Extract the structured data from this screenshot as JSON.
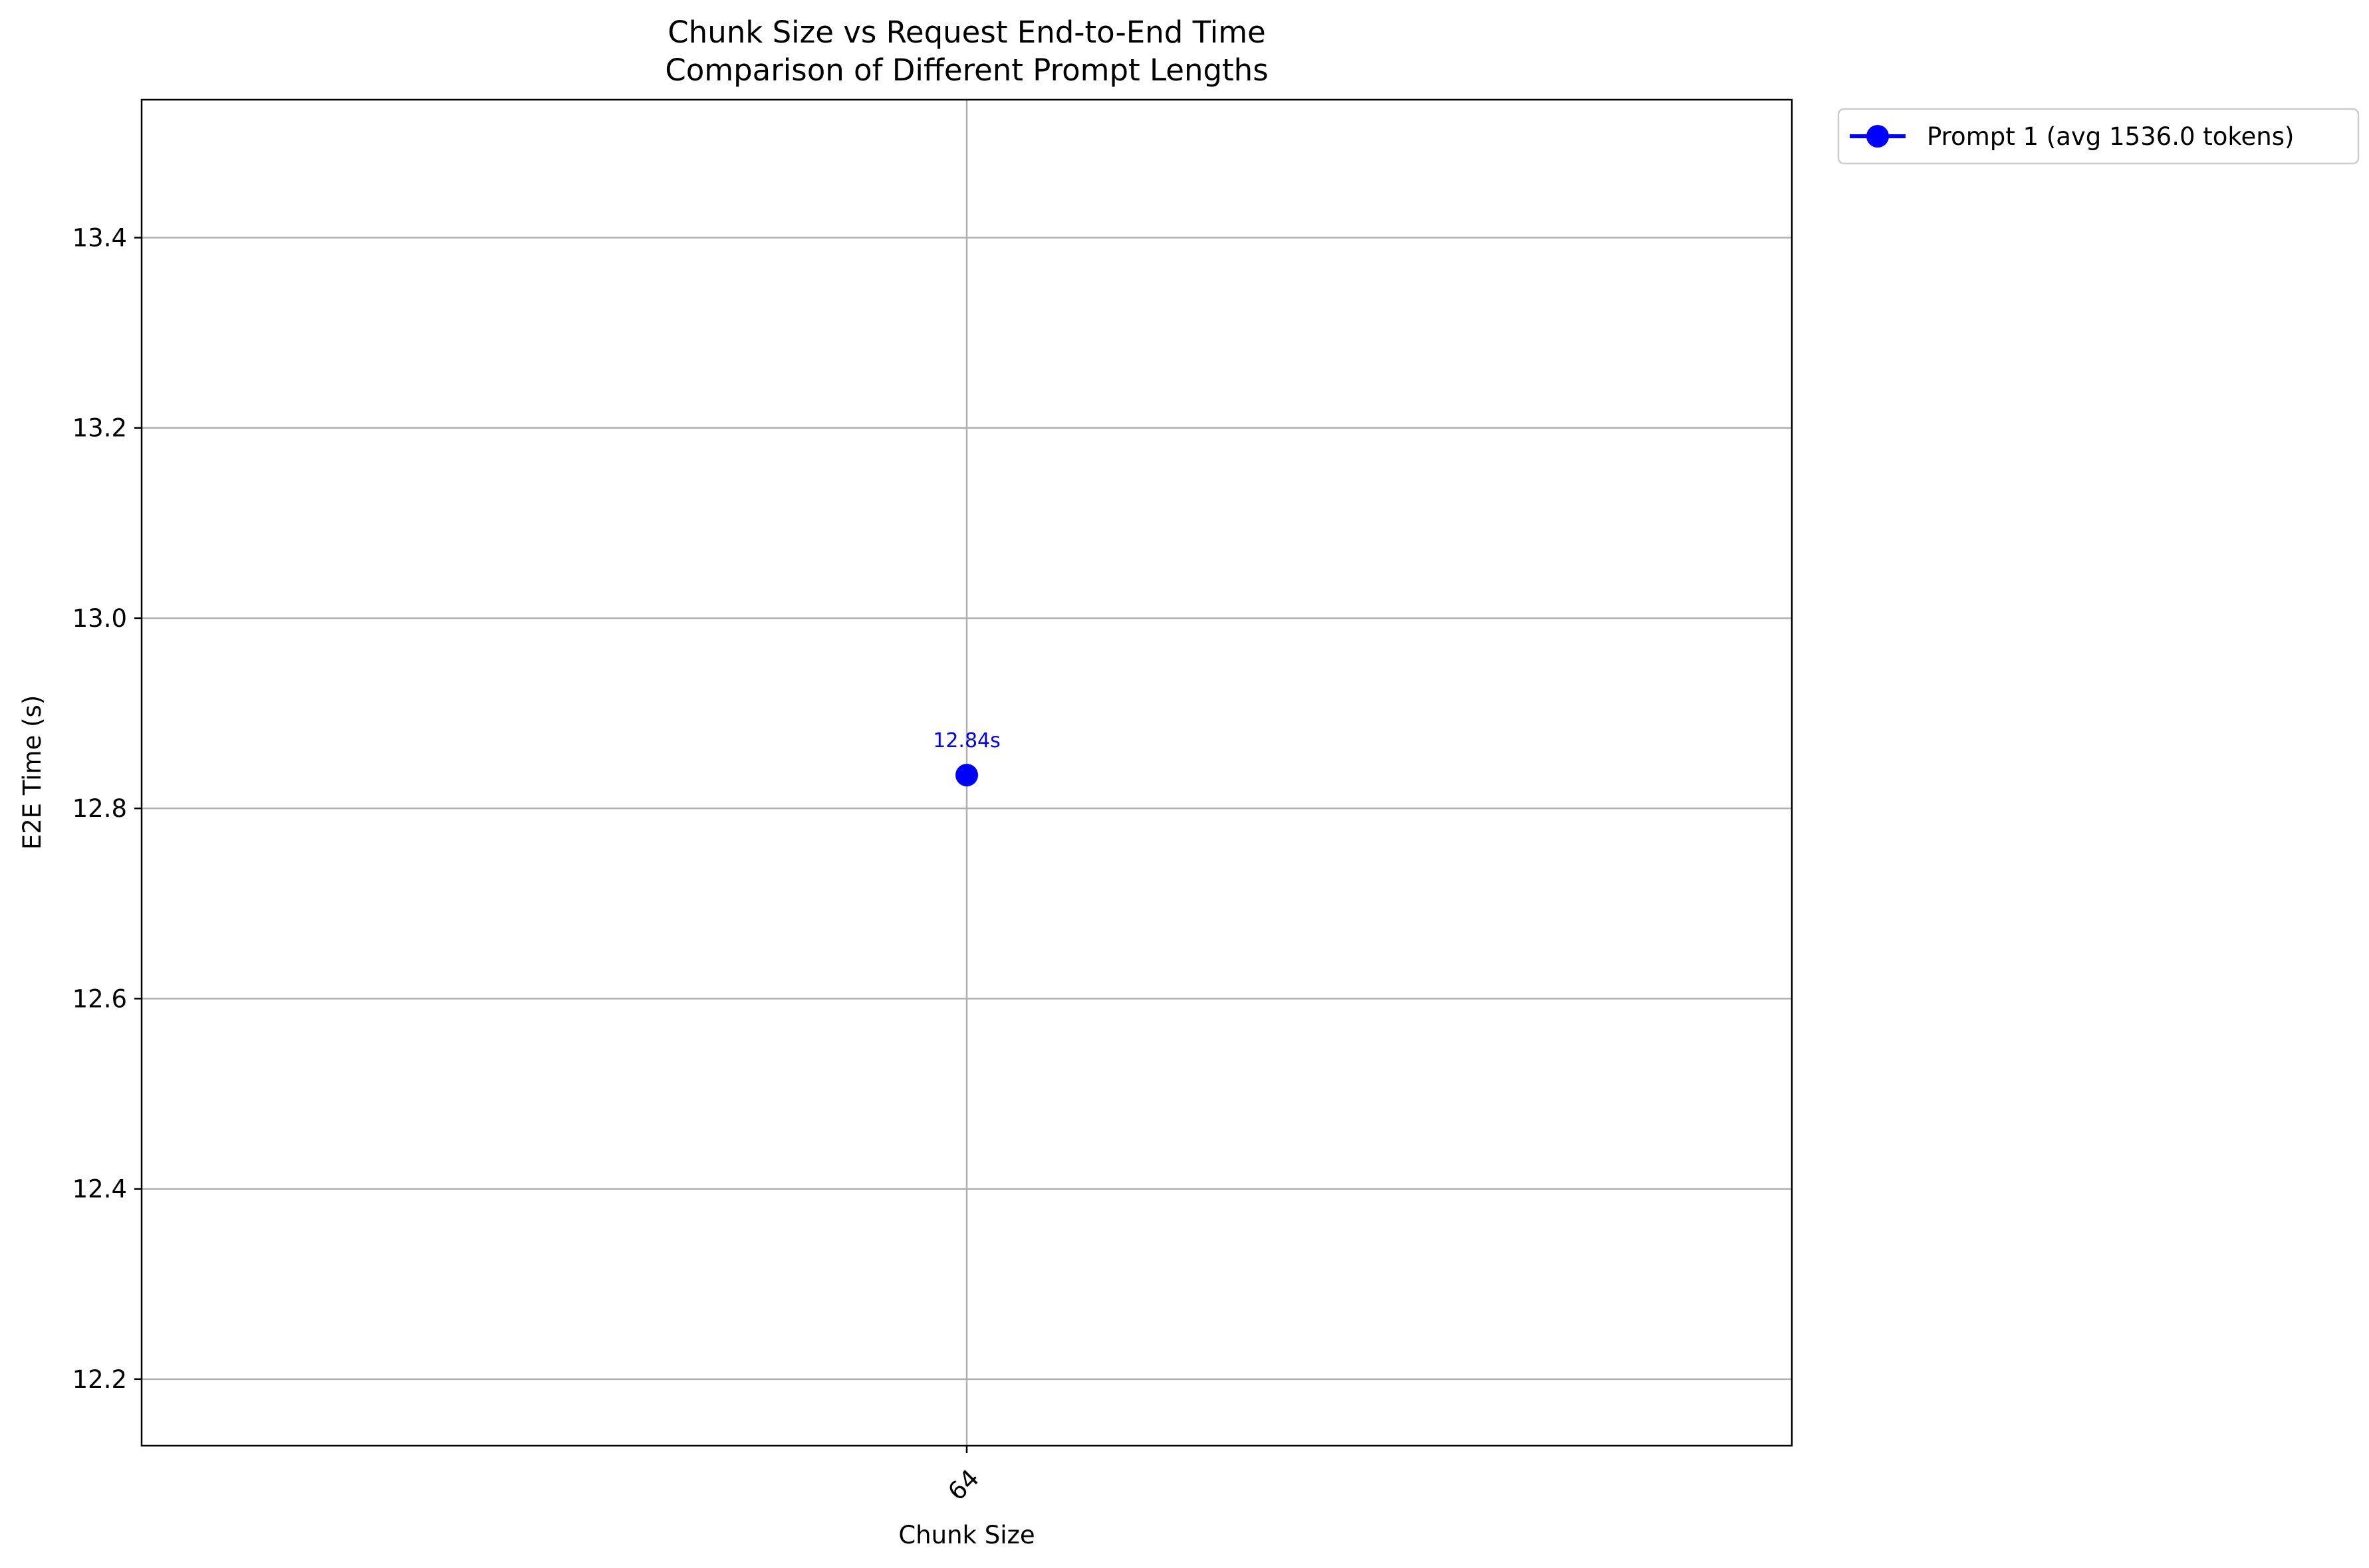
{
  "chart_data": {
    "type": "line",
    "title": "Chunk Size vs Request End-to-End Time",
    "subtitle": "Comparison of Different Prompt Lengths",
    "xlabel": "Chunk Size",
    "ylabel": "E2E Time (s)",
    "categories": [
      "64"
    ],
    "ylim": [
      12.13,
      13.545
    ],
    "yticks": [
      12.2,
      12.4,
      12.6,
      12.8,
      13.0,
      13.2,
      13.4
    ],
    "ytick_labels": [
      "12.2",
      "12.4",
      "12.6",
      "12.8",
      "13.0",
      "13.2",
      "13.4"
    ],
    "grid": true,
    "legend_position": "outside-top-right",
    "series": [
      {
        "name": "Prompt 1 (avg 1536.0 tokens)",
        "color": "#0000ff",
        "marker": "circle",
        "values": [
          12.835
        ],
        "data_labels": [
          "12.84s"
        ]
      }
    ]
  }
}
